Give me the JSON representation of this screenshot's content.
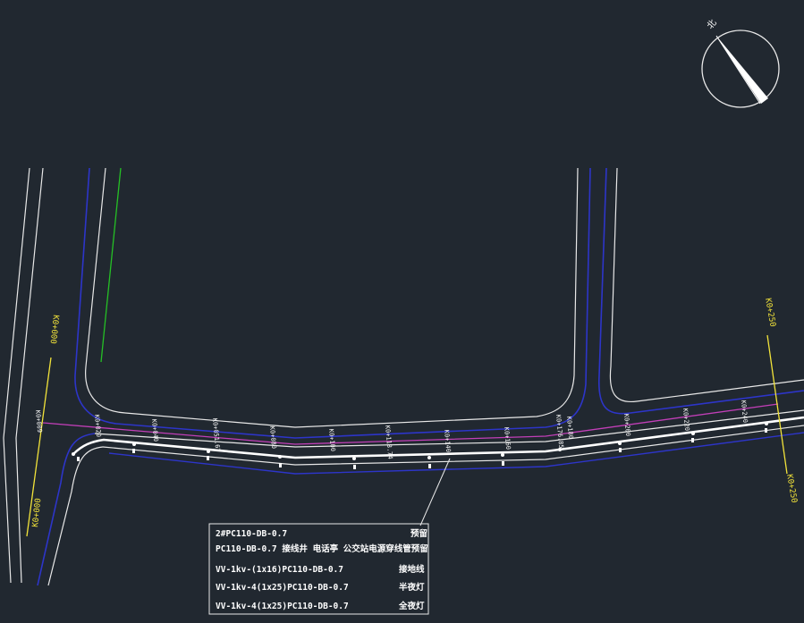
{
  "north_arrow": {
    "label": "北"
  },
  "yellow_chainages": [
    {
      "id": "k0-000-top",
      "text": "K0+000"
    },
    {
      "id": "k0-000-bottom",
      "text": "K0+000"
    },
    {
      "id": "k0-250-top",
      "text": "K0+250"
    },
    {
      "id": "k0-250-bottom",
      "text": "K0+250"
    }
  ],
  "stations": [
    "K0+009",
    "K0+020",
    "K0+040",
    "K0+051.67",
    "K0+080",
    "K0+100",
    "K0+118.74",
    "K0+140",
    "K0+160",
    "K0+176.85",
    "K0+180",
    "K0+200",
    "K0+220",
    "K0+240"
  ],
  "legend": {
    "rows": [
      {
        "left": "2#PC110-DB-0.7",
        "right": "预留"
      },
      {
        "left": "PC110-DB-0.7 接线井 电话亭 公交站电源穿线管预留",
        "right": ""
      },
      {
        "left": "VV-1kv-(1x16)PC110-DB-0.7",
        "right": "接地线"
      },
      {
        "left": "VV-1kv-4(1x25)PC110-DB-0.7",
        "right": "半夜灯"
      },
      {
        "left": "VV-1kv-4(1x25)PC110-DB-0.7",
        "right": "全夜灯"
      }
    ]
  },
  "colors": {
    "background": "#212830",
    "road_edge": "#e8e8e8",
    "curb_blue": "#2d35c9",
    "cable_magenta": "#c23fb8",
    "chainage_yellow": "#f2e33a",
    "green_line": "#25c025",
    "marker": "#ffffff"
  }
}
